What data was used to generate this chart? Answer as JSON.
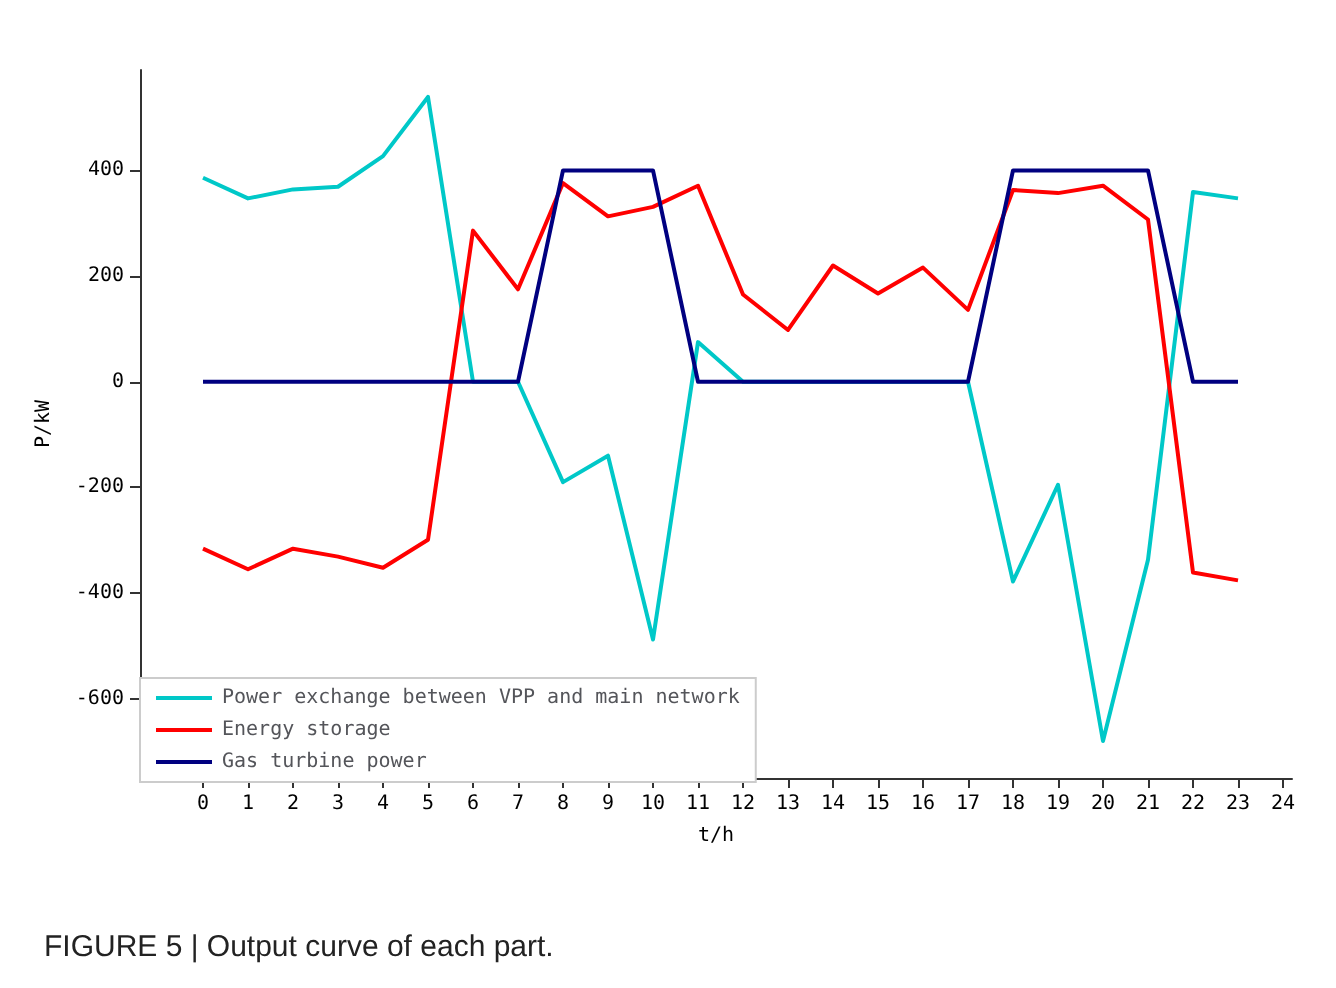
{
  "chart_data": {
    "type": "line",
    "xlabel": "t/h",
    "ylabel": "P/kW",
    "annotations": [
      "FIGURE 5 | Output curve of each part."
    ],
    "x": [
      0,
      1,
      2,
      3,
      4,
      5,
      6,
      7,
      8,
      9,
      10,
      11,
      12,
      13,
      14,
      15,
      16,
      17,
      18,
      19,
      20,
      21,
      22,
      23
    ],
    "series": [
      {
        "name": "Power exchange between VPP and main network",
        "color": "#00c8c8",
        "values": [
          386,
          347,
          364,
          369,
          427,
          539,
          0,
          0,
          -190,
          -140,
          -488,
          75,
          0,
          0,
          0,
          0,
          0,
          0,
          -378,
          -195,
          -680,
          -337,
          359,
          347
        ]
      },
      {
        "name": "Energy storage",
        "color": "#ff0000",
        "values": [
          -316,
          -355,
          -316,
          -331,
          -352,
          -299,
          286,
          175,
          376,
          313,
          331,
          371,
          165,
          98,
          220,
          167,
          216,
          136,
          363,
          357,
          371,
          307,
          -361,
          -376
        ]
      },
      {
        "name": "Gas turbine power",
        "color": "#000080",
        "values": [
          0,
          0,
          0,
          0,
          0,
          0,
          0,
          0,
          400,
          400,
          400,
          0,
          0,
          0,
          0,
          0,
          0,
          0,
          400,
          400,
          400,
          400,
          0,
          0
        ]
      }
    ],
    "xlim": [
      -1.4,
      24.2
    ],
    "xticks": [
      0,
      1,
      2,
      3,
      4,
      5,
      6,
      7,
      8,
      9,
      10,
      11,
      12,
      13,
      14,
      15,
      16,
      17,
      18,
      19,
      20,
      21,
      22,
      23,
      24
    ],
    "ylim": [
      -750,
      590
    ],
    "yticks": [
      -600,
      -400,
      -200,
      0,
      200,
      400
    ],
    "grid": false,
    "legend": "bottom left",
    "marker": "none",
    "line_style": "solid"
  }
}
